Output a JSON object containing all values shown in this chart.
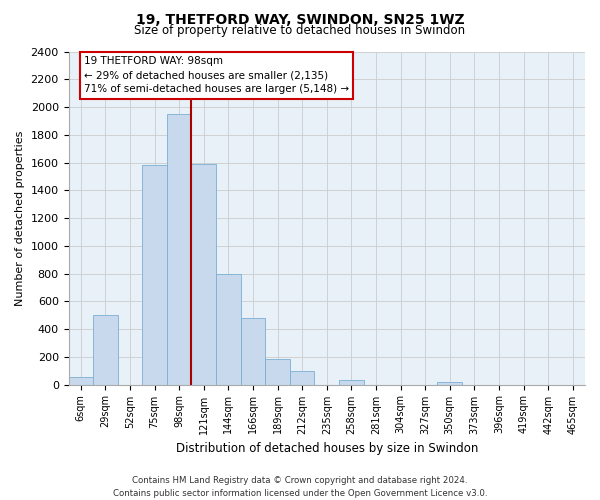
{
  "title_line1": "19, THETFORD WAY, SWINDON, SN25 1WZ",
  "title_line2": "Size of property relative to detached houses in Swindon",
  "xlabel": "Distribution of detached houses by size in Swindon",
  "ylabel": "Number of detached properties",
  "bar_color": "#c8d9ed",
  "bar_edge_color": "#7BAFD4",
  "categories": [
    "6sqm",
    "29sqm",
    "52sqm",
    "75sqm",
    "98sqm",
    "121sqm",
    "144sqm",
    "166sqm",
    "189sqm",
    "212sqm",
    "235sqm",
    "258sqm",
    "281sqm",
    "304sqm",
    "327sqm",
    "350sqm",
    "373sqm",
    "396sqm",
    "419sqm",
    "442sqm",
    "465sqm"
  ],
  "values": [
    55,
    500,
    0,
    1580,
    1950,
    1590,
    800,
    480,
    185,
    95,
    0,
    35,
    0,
    0,
    0,
    20,
    0,
    0,
    0,
    0,
    0
  ],
  "ylim": [
    0,
    2400
  ],
  "yticks": [
    0,
    200,
    400,
    600,
    800,
    1000,
    1200,
    1400,
    1600,
    1800,
    2000,
    2200,
    2400
  ],
  "annotation_title": "19 THETFORD WAY: 98sqm",
  "annotation_line1": "← 29% of detached houses are smaller (2,135)",
  "annotation_line2": "71% of semi-detached houses are larger (5,148) →",
  "vline_x_idx": 4,
  "vline_color": "#aa0000",
  "footer_line1": "Contains HM Land Registry data © Crown copyright and database right 2024.",
  "footer_line2": "Contains public sector information licensed under the Open Government Licence v3.0.",
  "bg_color": "#ffffff",
  "grid_color": "#cccccc",
  "grid_bg_color": "#e8f0f8"
}
